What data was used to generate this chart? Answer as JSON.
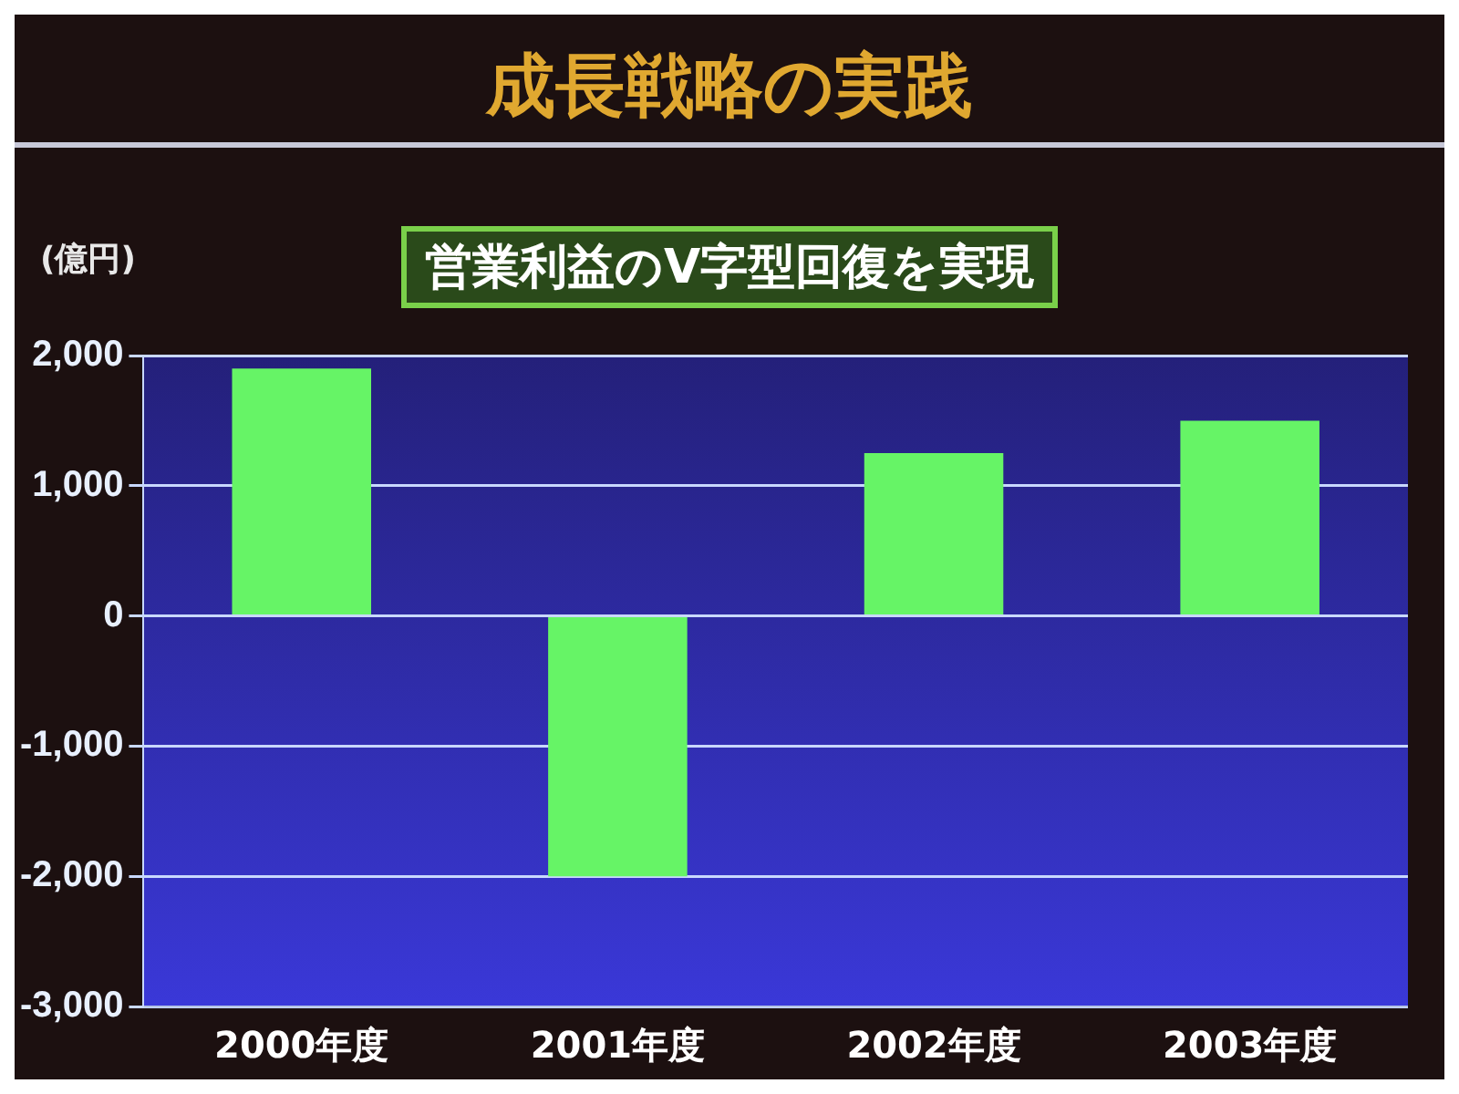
{
  "chart_data": {
    "type": "bar",
    "title": "成長戦略の実践",
    "subtitle": "営業利益のV字型回復を実現",
    "ylabel": "(億円)",
    "categories": [
      "2000年度",
      "2001年度",
      "2002年度",
      "2003年度"
    ],
    "values": [
      1900,
      -2000,
      1250,
      1500
    ],
    "color": "#66f466",
    "ylim": [
      -3000,
      2000
    ],
    "yticks": [
      {
        "value": -3000,
        "label": "-3,000"
      },
      {
        "value": -2000,
        "label": "-2,000"
      },
      {
        "value": -1000,
        "label": "-1,000"
      },
      {
        "value": 0,
        "label": "0"
      },
      {
        "value": 1000,
        "label": "1,000"
      },
      {
        "value": 2000,
        "label": "2,000"
      }
    ],
    "grid": "y",
    "legend": false
  }
}
